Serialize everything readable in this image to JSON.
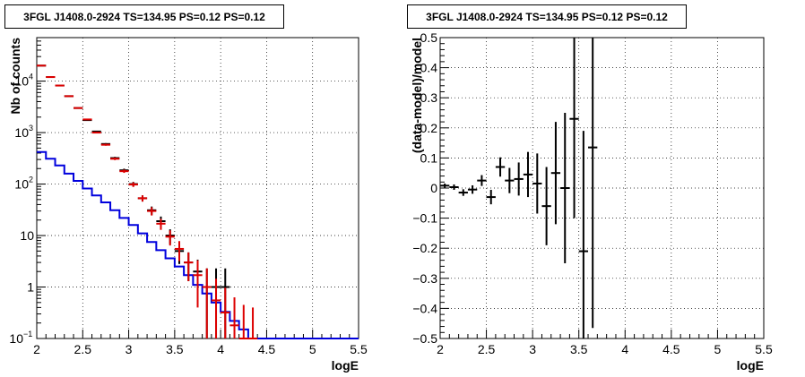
{
  "chart_data": [
    {
      "type": "histogram",
      "title": "3FGL J1408.0-2924 TS=134.95 PS=0.12 PS=0.12",
      "xlabel": "logE",
      "ylabel": "Nb of counts",
      "xlim": [
        2,
        5.5
      ],
      "ylim": [
        0.1,
        70000
      ],
      "yscale": "log",
      "grid": true,
      "xticks": [
        "2",
        "2.5",
        "3",
        "3.5",
        "4",
        "4.5",
        "5",
        "5.5"
      ],
      "yticks": [
        "10^{-1}",
        "1",
        "10",
        "10^{2}",
        "10^{3}",
        "10^{4}"
      ],
      "bin_edges": [
        2,
        2.1,
        2.2,
        2.3,
        2.4,
        2.5,
        2.6,
        2.7,
        2.8,
        2.9,
        3.0,
        3.1,
        3.2,
        3.3,
        3.4,
        3.5,
        3.6,
        3.7,
        3.8,
        3.9,
        4.0,
        4.1,
        4.2,
        4.3,
        4.4,
        4.5,
        4.6,
        4.7,
        4.8,
        4.9,
        5.0,
        5.1,
        5.2,
        5.3,
        5.4,
        5.5
      ],
      "series": [
        {
          "color": "#0000dd",
          "kind": "step",
          "values": [
            420,
            310,
            230,
            160,
            115,
            82,
            60,
            44,
            31,
            22,
            16,
            11,
            7.5,
            5.2,
            3.6,
            2.5,
            1.7,
            1.1,
            0.75,
            0.5,
            0.33,
            0.22,
            0.15,
            0.1,
            0.1,
            0.1,
            0.1,
            0.1,
            0.1,
            0.1,
            0.1,
            0.1,
            0.1,
            0.1,
            0.1
          ]
        },
        {
          "color": "#000000",
          "kind": "errorbar",
          "x": [
            2.05,
            2.15,
            2.25,
            2.35,
            2.45,
            2.55,
            2.65,
            2.75,
            2.85,
            2.95,
            3.05,
            3.15,
            3.25,
            3.35,
            3.45,
            3.55,
            3.65,
            3.75,
            3.85,
            3.95,
            4.05
          ],
          "y": [
            20000,
            12000,
            8200,
            5100,
            3000,
            1750,
            1050,
            600,
            320,
            185,
            100,
            53,
            31,
            19,
            10,
            5,
            3,
            2,
            1,
            1,
            1
          ],
          "yerr_low": [
            140,
            110,
            90,
            71,
            55,
            42,
            32,
            24,
            18,
            14,
            10,
            7.3,
            5.6,
            4.4,
            3.2,
            2.2,
            1.7,
            1.4,
            0.9,
            0.9,
            0.9
          ],
          "yerr_high": [
            140,
            110,
            90,
            71,
            55,
            42,
            32,
            24,
            18,
            14,
            10,
            7.3,
            5.6,
            4.4,
            3.2,
            2.2,
            1.7,
            1.4,
            1.3,
            1.3,
            1.3
          ]
        },
        {
          "color": "#dd0000",
          "kind": "errorbar",
          "x": [
            2.05,
            2.15,
            2.25,
            2.35,
            2.45,
            2.55,
            2.65,
            2.75,
            2.85,
            2.95,
            3.05,
            3.15,
            3.25,
            3.35,
            3.45,
            3.55,
            3.65,
            3.75,
            3.85,
            3.95,
            4.05,
            4.15,
            4.25,
            4.35
          ],
          "y": [
            20000,
            12000,
            8200,
            5100,
            3000,
            1800,
            1000,
            580,
            310,
            178,
            98,
            53,
            30,
            17,
            9.5,
            5.5,
            3,
            1.7,
            1,
            0.55,
            0.32,
            0.18,
            0.1,
            0.1
          ],
          "yerr_low": [
            140,
            110,
            90,
            71,
            55,
            42,
            32,
            24,
            18,
            13,
            10,
            7.3,
            5.5,
            4.1,
            3.1,
            2.3,
            1.7,
            1.3,
            0.95,
            0.45,
            0.25,
            0.08,
            0,
            0
          ],
          "yerr_high": [
            140,
            110,
            90,
            71,
            55,
            42,
            32,
            24,
            18,
            13,
            10,
            7.3,
            5.5,
            4.1,
            3.1,
            2.3,
            1.7,
            1.6,
            1.3,
            0.9,
            0.65,
            0.45,
            0.35,
            0.3
          ]
        }
      ]
    },
    {
      "type": "scatter",
      "title": "3FGL J1408.0-2924 TS=134.95 PS=0.12 PS=0.12",
      "xlabel": "logE",
      "ylabel": "(data-model)/model",
      "xlim": [
        2,
        5.5
      ],
      "ylim": [
        -0.5,
        0.5
      ],
      "grid": true,
      "xticks": [
        "2",
        "2.5",
        "3",
        "3.5",
        "4",
        "4.5",
        "5",
        "5.5"
      ],
      "yticks": [
        "−0.5",
        "−0.4",
        "−0.3",
        "−0.2",
        "−0.1",
        "0",
        "0.1",
        "0.2",
        "0.3",
        "0.4",
        "0.5"
      ],
      "series": [
        {
          "color": "#000000",
          "kind": "errorbar",
          "x": [
            2.05,
            2.15,
            2.25,
            2.35,
            2.45,
            2.55,
            2.65,
            2.75,
            2.85,
            2.95,
            3.05,
            3.15,
            3.25,
            3.35,
            3.45,
            3.55,
            3.65
          ],
          "y": [
            0.008,
            0.003,
            -0.015,
            -0.005,
            0.025,
            -0.03,
            0.07,
            0.025,
            0.03,
            0.045,
            0.015,
            -0.06,
            0.05,
            0.0,
            0.23,
            -0.21,
            0.135
          ],
          "yerr": [
            0.007,
            0.009,
            0.011,
            0.014,
            0.018,
            0.024,
            0.032,
            0.042,
            0.055,
            0.075,
            0.1,
            0.13,
            0.17,
            0.25,
            0.33,
            0.4,
            0.6
          ]
        }
      ]
    }
  ]
}
